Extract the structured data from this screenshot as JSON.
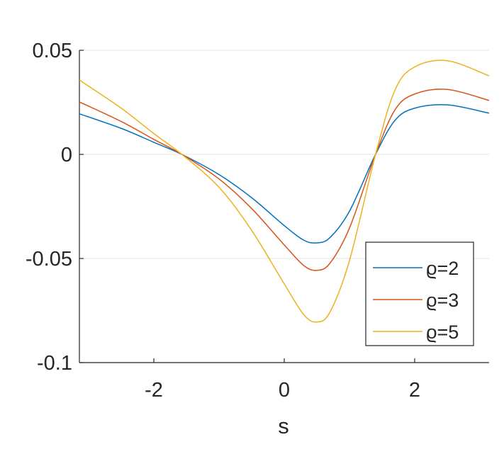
{
  "chart_data": {
    "type": "line",
    "title": "",
    "xlabel": "s",
    "ylabel": "",
    "xlim": [
      -3.1416,
      3.1416
    ],
    "ylim": [
      -0.1,
      0.05
    ],
    "xticks": [
      -2,
      0,
      2
    ],
    "xtick_labels": [
      "-2",
      "0",
      "2"
    ],
    "yticks": [
      -0.1,
      -0.05,
      0,
      0.05
    ],
    "ytick_labels": [
      "-0.1",
      "-0.05",
      "0",
      "0.05"
    ],
    "grid": "y-major",
    "legend_position": "bottom-right",
    "x": [
      -3.1416,
      -2.5,
      -2.0,
      -1.5708,
      -1.0,
      -0.5,
      0.0,
      0.3,
      0.5,
      0.7,
      1.0,
      1.4,
      1.7,
      2.0,
      2.5,
      3.1416
    ],
    "series": [
      {
        "name": "ϱ=2",
        "color": "#0072BD",
        "values": [
          0.0195,
          0.0125,
          0.0058,
          0.0,
          -0.0097,
          -0.0208,
          -0.0342,
          -0.0412,
          -0.0425,
          -0.04,
          -0.0273,
          0.0,
          0.0164,
          0.0222,
          0.0238,
          0.0198
        ]
      },
      {
        "name": "ϱ=3",
        "color": "#D95319",
        "values": [
          0.0252,
          0.0158,
          0.0072,
          0.0,
          -0.0118,
          -0.026,
          -0.0435,
          -0.0534,
          -0.0557,
          -0.0523,
          -0.0354,
          0.0,
          0.0215,
          0.029,
          0.0312,
          0.0259
        ]
      },
      {
        "name": "ϱ=5",
        "color": "#EDB120",
        "values": [
          0.0357,
          0.0222,
          0.01,
          0.0,
          -0.0158,
          -0.0365,
          -0.0622,
          -0.077,
          -0.0805,
          -0.0758,
          -0.051,
          0.0,
          0.031,
          0.042,
          0.045,
          0.0377
        ]
      }
    ]
  }
}
